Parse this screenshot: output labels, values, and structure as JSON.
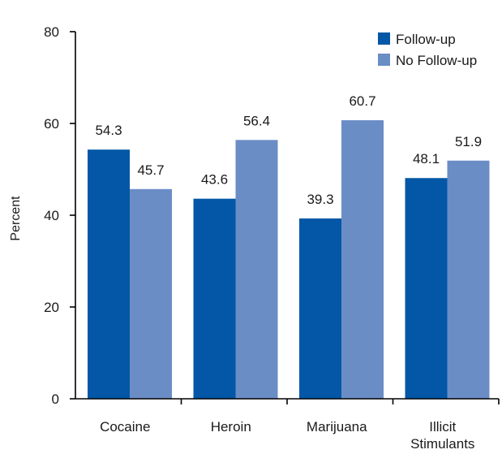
{
  "chart_data": {
    "type": "bar",
    "title": "",
    "xlabel": "",
    "ylabel": "Percent",
    "ylim": [
      0,
      80
    ],
    "yticks": [
      0,
      20,
      40,
      60,
      80
    ],
    "categories": [
      [
        "Cocaine"
      ],
      [
        "Heroin"
      ],
      [
        "Marijuana"
      ],
      [
        "Illicit",
        "Stimulants"
      ]
    ],
    "series": [
      {
        "name": "Follow-up",
        "color": "#0357a6",
        "values": [
          54.3,
          43.6,
          39.3,
          48.1
        ]
      },
      {
        "name": "No Follow-up",
        "color": "#6a8dc6",
        "values": [
          45.7,
          56.4,
          60.7,
          51.9
        ]
      }
    ],
    "legend_position": "top-right",
    "grid": false
  }
}
